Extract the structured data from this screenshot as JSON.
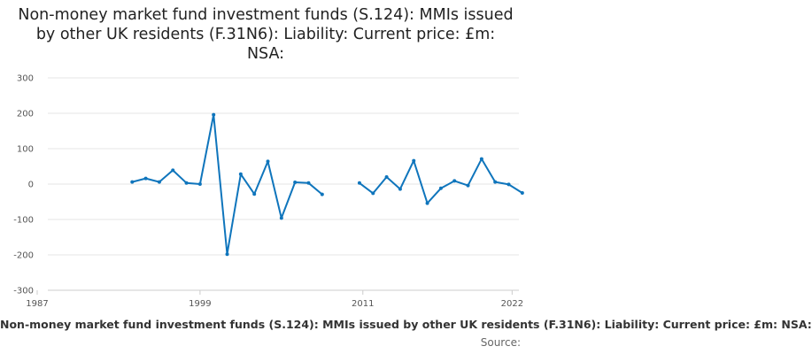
{
  "chart_data": {
    "type": "line",
    "title": "Non-money market fund investment funds (S.124): MMIs issued by other UK residents (F.31N6): Liability: Current price: £m: NSA:",
    "xlabel": "",
    "ylabel": "",
    "x_ticks": [
      "1987",
      "1999",
      "2011",
      "2022"
    ],
    "y_ticks": [
      "300",
      "200",
      "100",
      "0",
      "-100",
      "-200",
      "-300"
    ],
    "xlim": [
      1987,
      2022.5
    ],
    "ylim": [
      -300,
      300
    ],
    "grid": true,
    "legend_text": "Non-money market fund investment funds (S.124): MMIs issued by other UK residents (F.31N6): Liability: Current price: £m: NSA:",
    "source": "Source:",
    "color": "#0f75bc",
    "series": [
      {
        "segments": [
          [
            {
              "x": 1994.0,
              "y": 6
            },
            {
              "x": 1995.0,
              "y": 16
            },
            {
              "x": 1996.0,
              "y": 6
            },
            {
              "x": 1997.0,
              "y": 39
            },
            {
              "x": 1998.0,
              "y": 3
            },
            {
              "x": 1999.0,
              "y": 0
            },
            {
              "x": 2000.0,
              "y": 196
            },
            {
              "x": 2001.0,
              "y": -198
            },
            {
              "x": 2002.0,
              "y": 28
            },
            {
              "x": 2003.0,
              "y": -28
            },
            {
              "x": 2004.0,
              "y": 64
            },
            {
              "x": 2005.0,
              "y": -96
            },
            {
              "x": 2006.0,
              "y": 5
            },
            {
              "x": 2007.0,
              "y": 3
            },
            {
              "x": 2008.0,
              "y": -29
            }
          ],
          [
            {
              "x": 2010.75,
              "y": 3
            },
            {
              "x": 2011.75,
              "y": -26
            },
            {
              "x": 2012.75,
              "y": 20
            },
            {
              "x": 2013.75,
              "y": -14
            },
            {
              "x": 2014.75,
              "y": 66
            },
            {
              "x": 2015.75,
              "y": -54
            },
            {
              "x": 2016.75,
              "y": -12
            },
            {
              "x": 2017.75,
              "y": 9
            },
            {
              "x": 2018.75,
              "y": -4
            },
            {
              "x": 2019.75,
              "y": 71
            },
            {
              "x": 2020.75,
              "y": 6
            },
            {
              "x": 2021.75,
              "y": -1
            },
            {
              "x": 2022.75,
              "y": -25
            }
          ]
        ]
      }
    ]
  }
}
